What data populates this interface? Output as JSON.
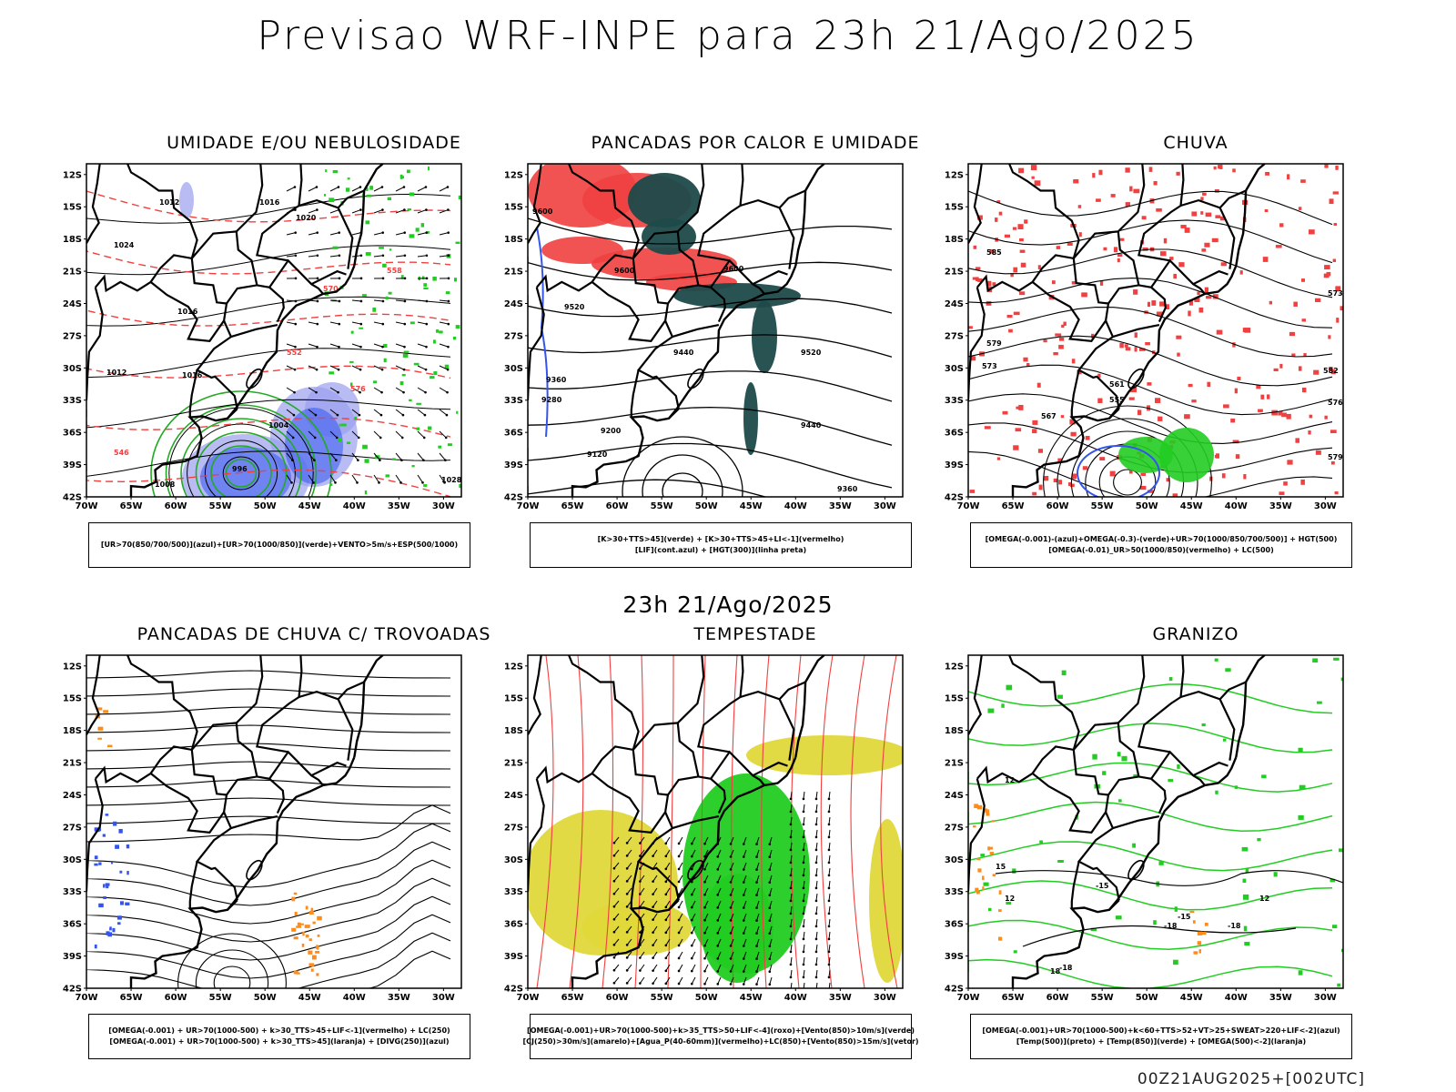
{
  "header": {
    "title": "Previsao WRF-INPE  para 23h 21/Ago/2025"
  },
  "mid_title": "23h 21/Ago/2025",
  "footer": "00Z21AUG2025+[002UTC]",
  "axes": {
    "lat_labels": [
      "12S",
      "15S",
      "18S",
      "21S",
      "24S",
      "27S",
      "30S",
      "33S",
      "36S",
      "39S",
      "42S"
    ],
    "lon_labels": [
      "70W",
      "65W",
      "60W",
      "55W",
      "50W",
      "45W",
      "40W",
      "35W",
      "30W"
    ]
  },
  "panels": [
    {
      "title": "UMIDADE E/OU NEBULOSIDADE",
      "legend": [
        "[UR>70(850/700/500)](azul)+[UR>70(1000/850)](verde)+VENTO>5m/s+ESP(500/1000)"
      ],
      "contour_labels": [
        "1012",
        "1016",
        "1020",
        "1024",
        "1016",
        "1016",
        "1012",
        "1008",
        "1004",
        "996",
        "1028",
        "570",
        "576",
        "558",
        "552",
        "546"
      ]
    },
    {
      "title": "PANCADAS POR CALOR E UMIDADE",
      "legend": [
        "[K>30+TTS>45](verde) + [K>30+TTS>45+LI<-1](vermelho)",
        "[LIF](cont.azul) + [HGT(300)](linha preta)"
      ],
      "contour_labels": [
        "9600",
        "9600",
        "9520",
        "9440",
        "9360",
        "9280",
        "9200",
        "9120",
        "9520",
        "9440",
        "9360",
        "9600"
      ]
    },
    {
      "title": "CHUVA",
      "legend": [
        "[OMEGA(-0.001)-(azul)+OMEGA(-0.3)-(verde)+UR>70(1000/850/700/500)] + HGT(500)",
        "[OMEGA(-0.01)_UR>50(1000/850)(vermelho) + LC(500)"
      ],
      "contour_labels": [
        "585",
        "579",
        "573",
        "567",
        "561",
        "555",
        "573",
        "576",
        "579",
        "582"
      ]
    },
    {
      "title": "PANCADAS DE CHUVA C/ TROVOADAS",
      "legend": [
        "[OMEGA(-0.001) + UR>70(1000-500) + k>30_TTS>45+LIF<-1](vermelho) + LC(250)",
        "[OMEGA(-0.001) + UR>70(1000-500) + k>30_TTS>45](laranja) + [DIVG(250)](azul)"
      ]
    },
    {
      "title": "TEMPESTADE",
      "legend": [
        "[OMEGA(-0.001)+UR>70(1000-500)+k>35_TTS>50+LIF<-4](roxo)+[Vento(850)>10m/s](verde)",
        "[CJ(250)>30m/s](amarelo)+[Agua_P(40-60mm)](vermelho)+LC(850)+[Vento(850)>15m/s](vetor)"
      ]
    },
    {
      "title": "GRANIZO",
      "legend": [
        "[OMEGA(-0.001)+UR>70(1000-500)+k<60+TTS>52+VT>25+SWEAT>220+LIF<-2](azul)",
        "[Temp(500)](preto) + [Temp(850)](verde) + [OMEGA(500)<-2](laranja)"
      ],
      "contour_labels": [
        "12",
        "15",
        "18",
        "-15",
        "-15",
        "-18",
        "-18",
        "-18",
        "12",
        "12"
      ]
    }
  ],
  "colors": {
    "red": "#f04040",
    "green": "#22cc22",
    "blue": "#3355ee",
    "lightblue": "#9aa0ee",
    "darkteal": "#1e4a4a",
    "yellow": "#e0d83a",
    "orange": "#ff8c1a"
  }
}
